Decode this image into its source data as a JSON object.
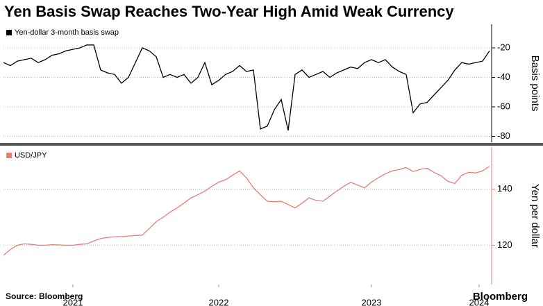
{
  "title": "Yen Basis Swap Reaches Two-Year High Amid Weak Currency",
  "source": "Source: Bloomberg",
  "brand": "Bloomberg",
  "chart_data": [
    {
      "type": "line",
      "ylabel": "Basis points",
      "xlim": [
        0,
        70.3
      ],
      "ylim": [
        -84,
        -4
      ],
      "yticks": [
        -20,
        -40,
        -60,
        -80
      ],
      "grid": true,
      "series": [
        {
          "name": "Yen-dollar 3-month basis swap",
          "color": "#000000",
          "values": [
            -30,
            -32,
            -29,
            -28,
            -27,
            -30,
            -28,
            -25,
            -24,
            -22,
            -21,
            -20,
            -18,
            -18,
            -35,
            -37,
            -38,
            -44,
            -40,
            -30,
            -20,
            -22,
            -26,
            -40,
            -38,
            -40,
            -38,
            -44,
            -40,
            -30,
            -45,
            -42,
            -38,
            -36,
            -32,
            -36,
            -35,
            -75,
            -73,
            -62,
            -55,
            -76,
            -38,
            -35,
            -40,
            -38,
            -36,
            -40,
            -37,
            -35,
            -33,
            -34,
            -30,
            -28,
            -30,
            -28,
            -33,
            -36,
            -38,
            -64,
            -58,
            -57,
            -52,
            -47,
            -42,
            -35,
            -30,
            -31,
            -30,
            -29,
            -22
          ]
        }
      ]
    },
    {
      "type": "line",
      "ylabel": "Yen per dollar",
      "xlim": [
        0,
        70.3
      ],
      "xticks": [
        {
          "value": 10,
          "label": "2021"
        },
        {
          "value": 31,
          "label": "2022"
        },
        {
          "value": 53,
          "label": "2023"
        },
        {
          "value": 68.5,
          "label": "2024"
        }
      ],
      "ylim": [
        106,
        155
      ],
      "yticks": [
        140,
        120
      ],
      "grid": true,
      "series": [
        {
          "name": "USD/JPY",
          "color": "#ec7c72",
          "values": [
            116.4,
            118.5,
            120,
            120.5,
            120.3,
            120,
            120,
            120.2,
            120.1,
            120,
            120,
            120.3,
            120.5,
            121.5,
            122.4,
            122.8,
            123,
            123.1,
            123.3,
            123.5,
            123.6,
            126,
            128.4,
            130,
            131.8,
            133.3,
            135,
            136.9,
            138,
            139.3,
            141,
            142.5,
            143.4,
            145,
            146.5,
            144,
            140.5,
            138,
            135.7,
            135.5,
            135.7,
            134.5,
            133.3,
            135,
            136.9,
            136,
            135.7,
            137.5,
            139.3,
            141,
            142.4,
            141.5,
            140.5,
            142.5,
            144.1,
            145.5,
            146.5,
            147,
            147.7,
            146.3,
            147,
            147.5,
            146,
            144.8,
            142.8,
            142,
            145,
            146,
            145.8,
            146.5,
            148.2
          ]
        }
      ]
    }
  ]
}
